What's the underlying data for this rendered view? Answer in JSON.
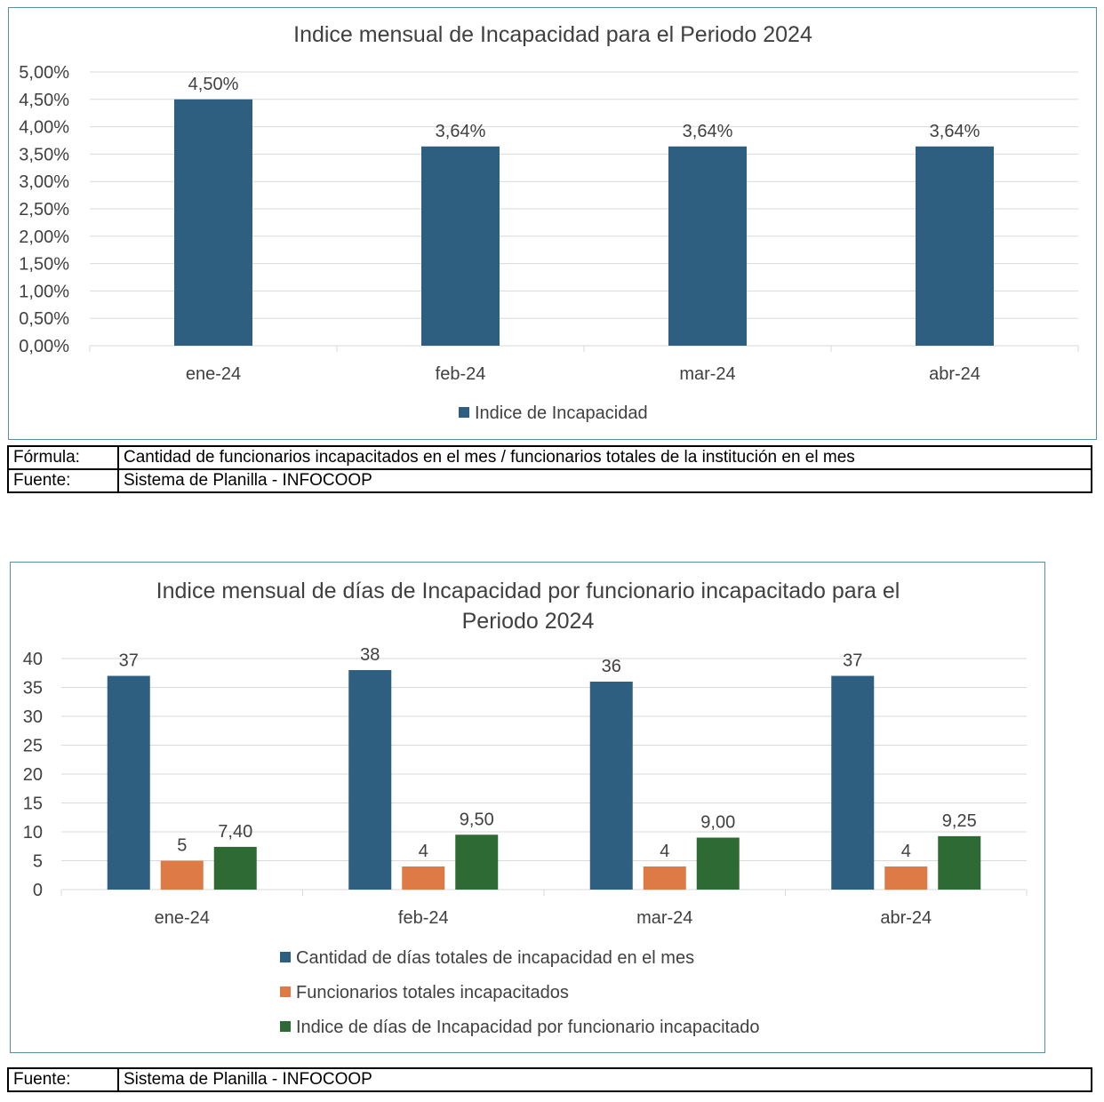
{
  "chart_data": [
    {
      "type": "bar",
      "title": "Indice mensual de Incapacidad para el Periodo 2024",
      "categories": [
        "ene-24",
        "feb-24",
        "mar-24",
        "abr-24"
      ],
      "series": [
        {
          "name": "Indice de Incapacidad",
          "color": "#2e5f80",
          "values": [
            4.5,
            3.64,
            3.64,
            3.64
          ],
          "labels": [
            "4,50%",
            "3,64%",
            "3,64%",
            "3,64%"
          ]
        }
      ],
      "yticks": [
        "0,00%",
        "0,50%",
        "1,00%",
        "1,50%",
        "2,00%",
        "2,50%",
        "3,00%",
        "3,50%",
        "4,00%",
        "4,50%",
        "5,00%"
      ],
      "ylim": [
        0,
        5
      ],
      "xlabel": "",
      "ylabel": "",
      "grid": true,
      "legend": "bottom"
    },
    {
      "type": "bar",
      "title_lines": [
        "Indice mensual de días de Incapacidad por funcionario incapacitado para el",
        "Periodo 2024"
      ],
      "categories": [
        "ene-24",
        "feb-24",
        "mar-24",
        "abr-24"
      ],
      "series": [
        {
          "name": "Cantidad de días totales de incapacidad en el mes",
          "color": "#2e5f80",
          "values": [
            37,
            38,
            36,
            37
          ],
          "labels": [
            "37",
            "38",
            "36",
            "37"
          ]
        },
        {
          "name": "Funcionarios totales incapacitados",
          "color": "#dd7a45",
          "values": [
            5,
            4,
            4,
            4
          ],
          "labels": [
            "5",
            "4",
            "4",
            "4"
          ]
        },
        {
          "name": "Indice de días de Incapacidad por funcionario incapacitado",
          "color": "#2e6a34",
          "values": [
            7.4,
            9.5,
            9.0,
            9.25
          ],
          "labels": [
            "7,40",
            "9,50",
            "9,00",
            "9,25"
          ]
        }
      ],
      "yticks": [
        "0",
        "5",
        "10",
        "15",
        "20",
        "25",
        "30",
        "35",
        "40"
      ],
      "ylim": [
        0,
        40
      ],
      "xlabel": "",
      "ylabel": "",
      "grid": true,
      "legend": "bottom"
    }
  ],
  "table1": {
    "formula_label": "Fórmula:",
    "formula_value": "Cantidad de funcionarios incapacitados en el mes / funcionarios totales de la institución en el mes",
    "source_label": "Fuente:",
    "source_value": "Sistema de Planilla - INFOCOOP"
  },
  "table2": {
    "source_label": "Fuente:",
    "source_value": "Sistema de Planilla - INFOCOOP"
  }
}
